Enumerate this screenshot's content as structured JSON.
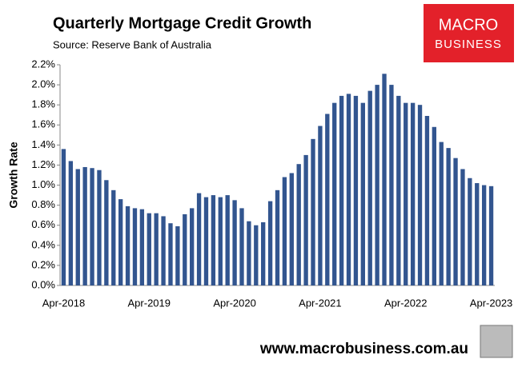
{
  "chart_data": {
    "type": "bar",
    "title": "Quarterly Mortgage Credit Growth",
    "subtitle": "Source: Reserve Bank of Australia",
    "y_label": "Growth Rate",
    "logo": [
      "MACRO",
      "BUSINESS"
    ],
    "footer": "www.macrobusiness.com.au",
    "color": "#32558f",
    "categories": [
      "Apr-2018",
      null,
      null,
      null,
      null,
      null,
      null,
      null,
      null,
      null,
      null,
      null,
      "Apr-2019",
      null,
      null,
      null,
      null,
      null,
      null,
      null,
      null,
      null,
      null,
      null,
      "Apr-2020",
      null,
      null,
      null,
      null,
      null,
      null,
      null,
      null,
      null,
      null,
      null,
      "Apr-2021",
      null,
      null,
      null,
      null,
      null,
      null,
      null,
      null,
      null,
      null,
      null,
      "Apr-2022",
      null,
      null,
      null,
      null,
      null,
      null,
      null,
      null,
      null,
      null,
      null,
      "Apr-2023"
    ],
    "values": [
      1.36,
      1.24,
      1.16,
      1.18,
      1.17,
      1.15,
      1.05,
      0.95,
      0.86,
      0.79,
      0.77,
      0.76,
      0.72,
      0.72,
      0.69,
      0.62,
      0.59,
      0.71,
      0.77,
      0.92,
      0.88,
      0.9,
      0.88,
      0.9,
      0.85,
      0.77,
      0.64,
      0.6,
      0.63,
      0.84,
      0.95,
      1.08,
      1.12,
      1.21,
      1.3,
      1.46,
      1.59,
      1.71,
      1.82,
      1.89,
      1.91,
      1.89,
      1.82,
      1.94,
      2.0,
      2.11,
      2.0,
      1.89,
      1.82,
      1.82,
      1.8,
      1.69,
      1.58,
      1.43,
      1.37,
      1.27,
      1.16,
      1.07,
      1.02,
      1.0,
      0.99
    ],
    "ylim": [
      0,
      2.2
    ],
    "yticks": [
      {
        "value": 0,
        "label": "0.0%"
      },
      {
        "value": 0.2,
        "label": "0.2%"
      },
      {
        "value": 0.4,
        "label": "0.4%"
      },
      {
        "value": 0.6,
        "label": "0.6%"
      },
      {
        "value": 0.8,
        "label": "0.8%"
      },
      {
        "value": 1.0,
        "label": "1.0%"
      },
      {
        "value": 1.2,
        "label": "1.2%"
      },
      {
        "value": 1.4,
        "label": "1.4%"
      },
      {
        "value": 1.6,
        "label": "1.6%"
      },
      {
        "value": 1.8,
        "label": "1.8%"
      },
      {
        "value": 2.0,
        "label": "2.0%"
      },
      {
        "value": 2.2,
        "label": "2.2%"
      }
    ],
    "grid": false
  }
}
